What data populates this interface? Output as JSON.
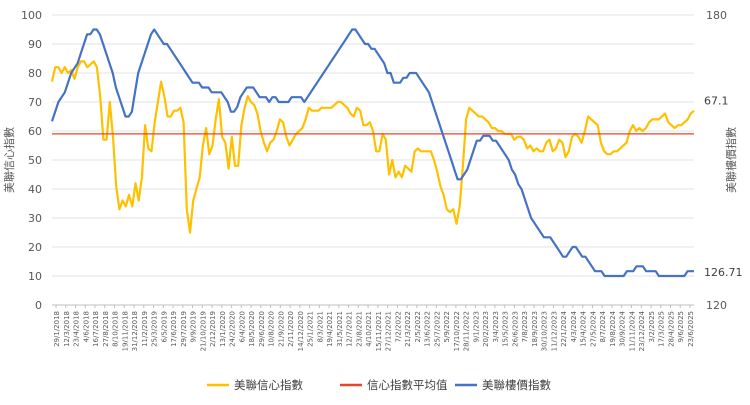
{
  "chart_data": {
    "type": "line",
    "title": "",
    "ylabel_left": "美聯信心指數",
    "ylabel_right": "美聯樓價指數",
    "ylim_left": [
      0,
      100
    ],
    "ylim_right": [
      120,
      180
    ],
    "yticks_left": [
      "0",
      "10",
      "20",
      "30",
      "40",
      "50",
      "60",
      "70",
      "80",
      "90",
      "100"
    ],
    "yticks_right": [
      "120",
      "180"
    ],
    "x_tick_labels": [
      "29/1/2018",
      "12/3/2018",
      "23/4/2018",
      "4/6/2018",
      "16/7/2018",
      "27/8/2018",
      "8/10/2018",
      "19/11/2018",
      "31/12/2018",
      "11/2/2019",
      "25/3/2019",
      "6/5/2019",
      "17/6/2019",
      "29/7/2019",
      "9/9/2019",
      "21/10/2019",
      "2/12/2019",
      "13/1/2020",
      "24/2/2020",
      "6/4/2020",
      "18/5/2020",
      "29/6/2020",
      "10/8/2020",
      "21/9/2020",
      "2/11/2020",
      "14/12/2020",
      "25/1/2021",
      "8/3/2021",
      "19/4/2021",
      "31/5/2021",
      "12/7/2021",
      "23/8/2021",
      "4/10/2021",
      "15/11/2021",
      "27/12/2021",
      "7/2/2022",
      "21/3/2022",
      "2/5/2022",
      "13/6/2022",
      "25/7/2022",
      "5/9/2022",
      "17/10/2022",
      "28/11/2022",
      "9/1/2023",
      "20/2/2023",
      "3/4/2023",
      "15/5/2023",
      "26/6/2023",
      "7/8/2023",
      "18/9/2023",
      "30/10/2023",
      "11/12/2023",
      "22/1/2024",
      "4/3/2024",
      "15/4/2024",
      "27/5/2024",
      "8/7/2024",
      "19/8/2024",
      "30/9/2024",
      "11/11/2024",
      "23/12/2024",
      "3/2/2025",
      "17/3/2025",
      "28/4/2025",
      "9/6/2025",
      "23/6/2025"
    ],
    "series": [
      {
        "name": "美聯信心指數",
        "color": "#FFC000",
        "axis": "left",
        "end_label": "67.1",
        "values": [
          77,
          82,
          82,
          80,
          82,
          80,
          81,
          78,
          82,
          84,
          84,
          82,
          83,
          84,
          82,
          72,
          57,
          57,
          70,
          58,
          41,
          33,
          36,
          34,
          38,
          34,
          42,
          36,
          44,
          62,
          54,
          53,
          63,
          70,
          77,
          72,
          65,
          65,
          67,
          67,
          68,
          63,
          33,
          25,
          36,
          40,
          44,
          55,
          61,
          52,
          55,
          64,
          71,
          58,
          56,
          47,
          58,
          48,
          48,
          62,
          68,
          72,
          70,
          69,
          66,
          60,
          56,
          53,
          56,
          57,
          60,
          64,
          63,
          58,
          55,
          57,
          59,
          60,
          61,
          64,
          68,
          67,
          67,
          67,
          68,
          68,
          68,
          68,
          69,
          70,
          70,
          69,
          68,
          66,
          65,
          68,
          67,
          62,
          62,
          63,
          60,
          53,
          53,
          59,
          57,
          45,
          50,
          44,
          46,
          44,
          48,
          47,
          46,
          53,
          54,
          53,
          53,
          53,
          53,
          50,
          46,
          41,
          38,
          33,
          32,
          33,
          28,
          34,
          48,
          64,
          68,
          67,
          66,
          65,
          65,
          64,
          63,
          61,
          61,
          60,
          60,
          59,
          59,
          59,
          57,
          58,
          58,
          57,
          54,
          55,
          53,
          54,
          53,
          53,
          56,
          57,
          53,
          54,
          57,
          56,
          51,
          53,
          58,
          59,
          58,
          56,
          60,
          65,
          64,
          63,
          62,
          56,
          53,
          52,
          52,
          53,
          53,
          54,
          55,
          56,
          60,
          62,
          60,
          61,
          60,
          61,
          63,
          64,
          64,
          64,
          65,
          66,
          63,
          62,
          61,
          62,
          62,
          63,
          64,
          66,
          67
        ]
      },
      {
        "name": "信心指數平均值",
        "color": "#E8442E",
        "axis": "left",
        "values": [
          59,
          59
        ]
      },
      {
        "name": "美聯樓價指數",
        "color": "#4472C4",
        "axis": "right",
        "end_label": "126.71",
        "values": [
          158,
          160,
          162,
          163,
          164,
          166,
          168,
          169,
          170,
          172,
          174,
          176,
          176,
          177,
          177,
          176,
          174,
          172,
          170,
          168,
          165,
          163,
          161,
          159,
          159,
          160,
          164,
          168,
          170,
          172,
          174,
          176,
          177,
          176,
          175,
          174,
          174,
          173,
          172,
          171,
          170,
          169,
          168,
          167,
          166,
          166,
          166,
          165,
          165,
          165,
          164,
          164,
          164,
          164,
          163,
          162,
          160,
          160,
          161,
          163,
          164,
          165,
          165,
          165,
          164,
          163,
          163,
          163,
          162,
          163,
          163,
          162,
          162,
          162,
          162,
          163,
          163,
          163,
          163,
          162,
          163,
          164,
          165,
          166,
          167,
          168,
          169,
          170,
          171,
          172,
          173,
          174,
          175,
          176,
          177,
          177,
          176,
          175,
          174,
          174,
          173,
          173,
          172,
          171,
          170,
          168,
          168,
          166,
          166,
          166,
          167,
          167,
          168,
          168,
          168,
          167,
          166,
          165,
          164,
          162,
          160,
          158,
          156,
          154,
          152,
          150,
          148,
          146,
          146,
          147,
          148,
          150,
          152,
          154,
          154,
          155,
          155,
          155,
          154,
          154,
          153,
          152,
          151,
          150,
          148,
          147,
          145,
          144,
          142,
          140,
          138,
          137,
          136,
          135,
          134,
          134,
          134,
          133,
          132,
          131,
          130,
          130,
          131,
          132,
          132,
          131,
          130,
          130,
          129,
          128,
          127,
          127,
          127,
          126,
          126,
          126,
          126,
          126,
          126,
          126,
          127,
          127,
          127,
          128,
          128,
          128,
          127,
          127,
          127,
          127,
          126,
          126,
          126,
          126,
          126,
          126,
          126,
          126,
          126,
          127,
          127,
          127
        ]
      }
    ],
    "legend_position": "bottom",
    "grid": true
  }
}
